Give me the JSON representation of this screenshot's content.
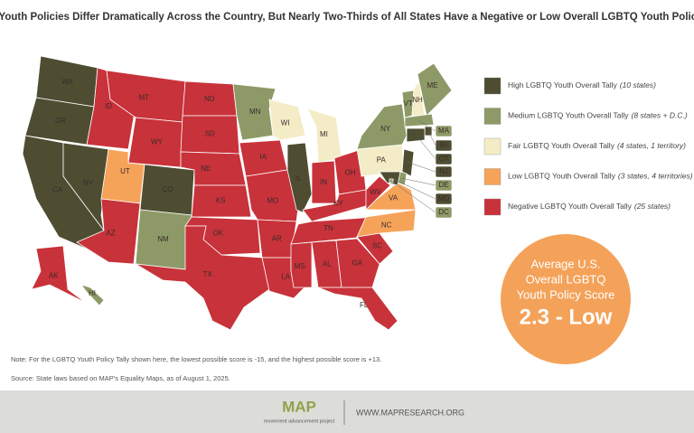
{
  "title": "LGBTQ Youth Policies Differ Dramatically Across the Country, But Nearly Two-Thirds of All States Have a Negative or Low Overall LGBTQ Youth Policy Score",
  "legend": [
    {
      "label": "High LGBTQ Youth Overall Tally",
      "count": "(10 states)",
      "color": "#4e4d32"
    },
    {
      "label": "Medium LGBTQ Youth Overall Tally",
      "count": "(8 states + D.C.)",
      "color": "#8d9a67"
    },
    {
      "label": "Fair LGBTQ Youth Overall Tally",
      "count": "(4 states, 1 territory)",
      "color": "#f3ecc6"
    },
    {
      "label": "Low LGBTQ Youth Overall Tally",
      "count": "(3 states, 4 territories)",
      "color": "#f6a35a"
    },
    {
      "label": "Negative LGBTQ Youth Overall Tally",
      "count": "(25 states)",
      "color": "#c8323a"
    }
  ],
  "states": [
    {
      "label": "WA",
      "color": "#4e4d32"
    },
    {
      "label": "OR",
      "color": "#4e4d32"
    },
    {
      "label": "CA",
      "color": "#4e4d32"
    },
    {
      "label": "NV",
      "color": "#4e4d32"
    },
    {
      "label": "ID",
      "color": "#c8323a"
    },
    {
      "label": "MT",
      "color": "#c8323a"
    },
    {
      "label": "WY",
      "color": "#c8323a"
    },
    {
      "label": "UT",
      "color": "#f6a35a"
    },
    {
      "label": "CO",
      "color": "#4e4d32"
    },
    {
      "label": "AZ",
      "color": "#c8323a"
    },
    {
      "label": "NM",
      "color": "#8d9a67"
    },
    {
      "label": "ND",
      "color": "#c8323a"
    },
    {
      "label": "SD",
      "color": "#c8323a"
    },
    {
      "label": "NE",
      "color": "#c8323a"
    },
    {
      "label": "KS",
      "color": "#c8323a"
    },
    {
      "label": "OK",
      "color": "#c8323a"
    },
    {
      "label": "TX",
      "color": "#c8323a"
    },
    {
      "label": "MN",
      "color": "#8d9a67"
    },
    {
      "label": "IA",
      "color": "#c8323a"
    },
    {
      "label": "MO",
      "color": "#c8323a"
    },
    {
      "label": "AR",
      "color": "#c8323a"
    },
    {
      "label": "LA",
      "color": "#c8323a"
    },
    {
      "label": "WI",
      "color": "#f3ecc6"
    },
    {
      "label": "IL",
      "color": "#4e4d32"
    },
    {
      "label": "MI",
      "color": "#f3ecc6"
    },
    {
      "label": "IN",
      "color": "#c8323a"
    },
    {
      "label": "OH",
      "color": "#c8323a"
    },
    {
      "label": "KY",
      "color": "#c8323a"
    },
    {
      "label": "TN",
      "color": "#c8323a"
    },
    {
      "label": "MS",
      "color": "#c8323a"
    },
    {
      "label": "AL",
      "color": "#c8323a"
    },
    {
      "label": "GA",
      "color": "#c8323a"
    },
    {
      "label": "FL",
      "color": "#c8323a"
    },
    {
      "label": "SC",
      "color": "#c8323a"
    },
    {
      "label": "NC",
      "color": "#f6a35a"
    },
    {
      "label": "VA",
      "color": "#f6a35a"
    },
    {
      "label": "WV",
      "color": "#c8323a"
    },
    {
      "label": "PA",
      "color": "#f3ecc6"
    },
    {
      "label": "NY",
      "color": "#8d9a67"
    },
    {
      "label": "VT",
      "color": "#8d9a67"
    },
    {
      "label": "NH",
      "color": "#f3ecc6"
    },
    {
      "label": "ME",
      "color": "#8d9a67"
    },
    {
      "label": "MA",
      "color": "#8d9a67"
    },
    {
      "label": "RI",
      "color": "#4e4d32"
    },
    {
      "label": "CT",
      "color": "#4e4d32"
    },
    {
      "label": "NJ",
      "color": "#4e4d32"
    },
    {
      "label": "DE",
      "color": "#8d9a67"
    },
    {
      "label": "MD",
      "color": "#4e4d32"
    },
    {
      "label": "DC",
      "color": "#8d9a67"
    },
    {
      "label": "AK",
      "color": "#c8323a"
    },
    {
      "label": "HI",
      "color": "#8d9a67"
    }
  ],
  "score": {
    "caption": [
      "Average U.S.",
      "Overall LGBTQ",
      "Youth Policy Score"
    ],
    "value": "2.3 - Low"
  },
  "notes": [
    "Note: For the LGBTQ Youth Policy Tally shown here, the lowest possible score is -15, and the highest possible score is +13.",
    "Source: State laws based on MAP's Equality Maps, as of August 1, 2025."
  ],
  "footer": {
    "logo": "MAP",
    "org": "movement advancement project",
    "url": "WWW.MAPRESEARCH.ORG"
  }
}
